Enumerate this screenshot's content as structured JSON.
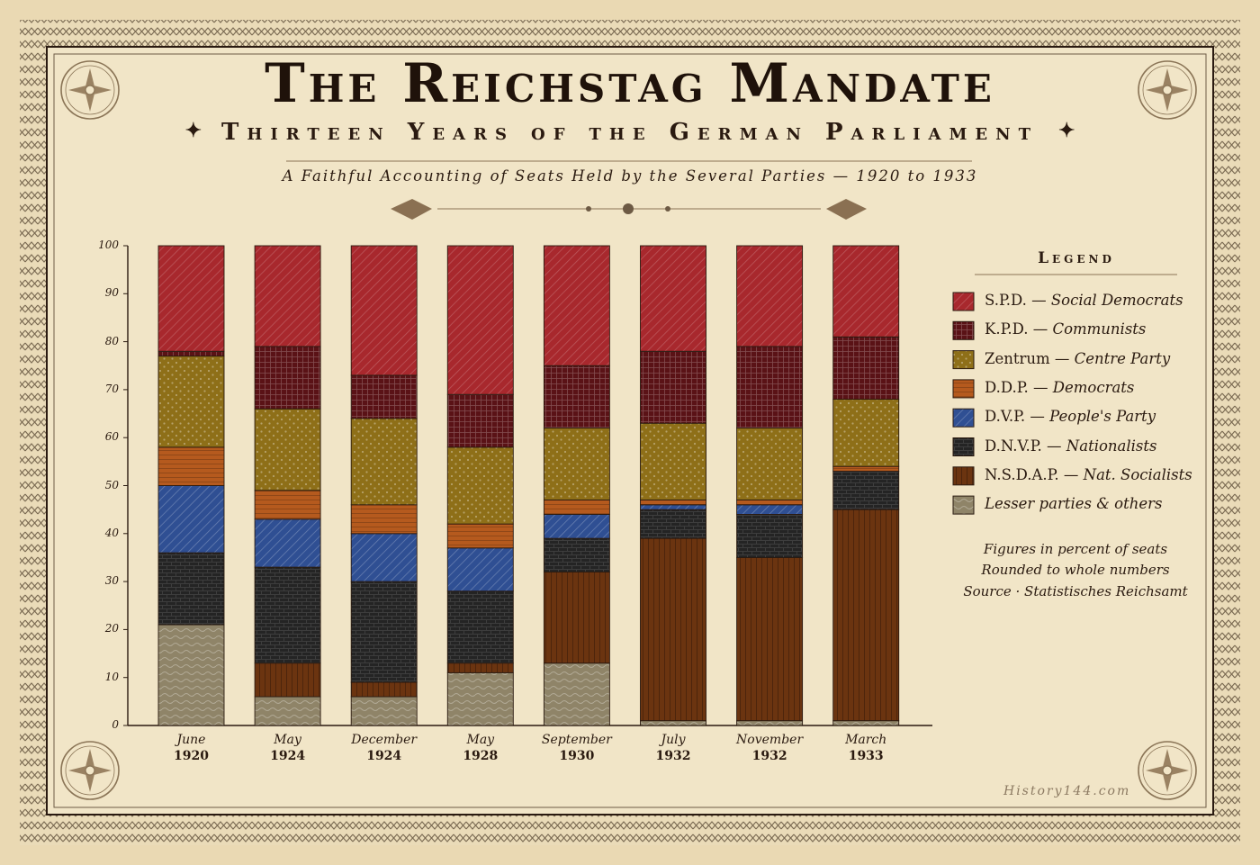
{
  "title": "The Reichstag Mandate",
  "subtitle": "Thirteen Years of the German Parliament",
  "tagline": "A Faithful Accounting of Seats Held by the Several Parties — 1920 to 1933",
  "legend": {
    "heading": "Legend",
    "items": [
      {
        "abbr": "S.P.D. — ",
        "desc": "Social Democrats",
        "color": "#a8282d",
        "pattern": "diag"
      },
      {
        "abbr": "K.P.D. — ",
        "desc": "Communists",
        "color": "#5a1216",
        "pattern": "grid"
      },
      {
        "abbr": "Zentrum — ",
        "desc": "Centre Party",
        "color": "#8e6f18",
        "pattern": "dots"
      },
      {
        "abbr": "D.D.P. — ",
        "desc": "Democrats",
        "color": "#b55a1e",
        "pattern": "hlines"
      },
      {
        "abbr": "D.V.P. — ",
        "desc": "People's Party",
        "color": "#2f4f93",
        "pattern": "diag2"
      },
      {
        "abbr": "D.N.V.P. — ",
        "desc": "Nationalists",
        "color": "#242424",
        "pattern": "brick"
      },
      {
        "abbr": "N.S.D.A.P. — ",
        "desc": "Nat. Socialists",
        "color": "#6b3410",
        "pattern": "vlines"
      },
      {
        "abbr": "",
        "desc": "Lesser parties & others",
        "color": "#8f8468",
        "pattern": "wave"
      }
    ]
  },
  "notes": [
    "Figures in percent of seats",
    "Rounded to whole numbers",
    "Source · Statistisches Reichsamt"
  ],
  "watermark": "History144.com",
  "chart_data": {
    "type": "bar",
    "stacked": true,
    "ylim": [
      0,
      100
    ],
    "yticks": [
      0,
      10,
      20,
      30,
      40,
      50,
      60,
      70,
      80,
      90,
      100
    ],
    "categories": [
      {
        "month": "June",
        "year": "1920"
      },
      {
        "month": "May",
        "year": "1924"
      },
      {
        "month": "December",
        "year": "1924"
      },
      {
        "month": "May",
        "year": "1928"
      },
      {
        "month": "September",
        "year": "1930"
      },
      {
        "month": "July",
        "year": "1932"
      },
      {
        "month": "November",
        "year": "1932"
      },
      {
        "month": "March",
        "year": "1933"
      }
    ],
    "stack_order_bottom_to_top": [
      "Lesser parties & others",
      "N.S.D.A.P.",
      "D.N.V.P.",
      "D.V.P.",
      "D.D.P.",
      "Zentrum",
      "K.P.D.",
      "S.P.D."
    ],
    "series": [
      {
        "name": "Lesser parties & others",
        "values": [
          21,
          6,
          6,
          11,
          13,
          1,
          1,
          1
        ]
      },
      {
        "name": "N.S.D.A.P.",
        "values": [
          0,
          7,
          3,
          2,
          19,
          38,
          34,
          44
        ]
      },
      {
        "name": "D.N.V.P.",
        "values": [
          15,
          20,
          21,
          15,
          7,
          6,
          9,
          8
        ]
      },
      {
        "name": "D.V.P.",
        "values": [
          14,
          10,
          10,
          9,
          5,
          1,
          2,
          0
        ]
      },
      {
        "name": "D.D.P.",
        "values": [
          8,
          6,
          6,
          5,
          3,
          1,
          1,
          1
        ]
      },
      {
        "name": "Zentrum",
        "values": [
          19,
          17,
          18,
          16,
          15,
          16,
          15,
          14
        ]
      },
      {
        "name": "K.P.D.",
        "values": [
          1,
          13,
          9,
          11,
          13,
          15,
          17,
          13
        ]
      },
      {
        "name": "S.P.D.",
        "values": [
          22,
          21,
          27,
          31,
          25,
          22,
          21,
          19
        ]
      }
    ]
  }
}
